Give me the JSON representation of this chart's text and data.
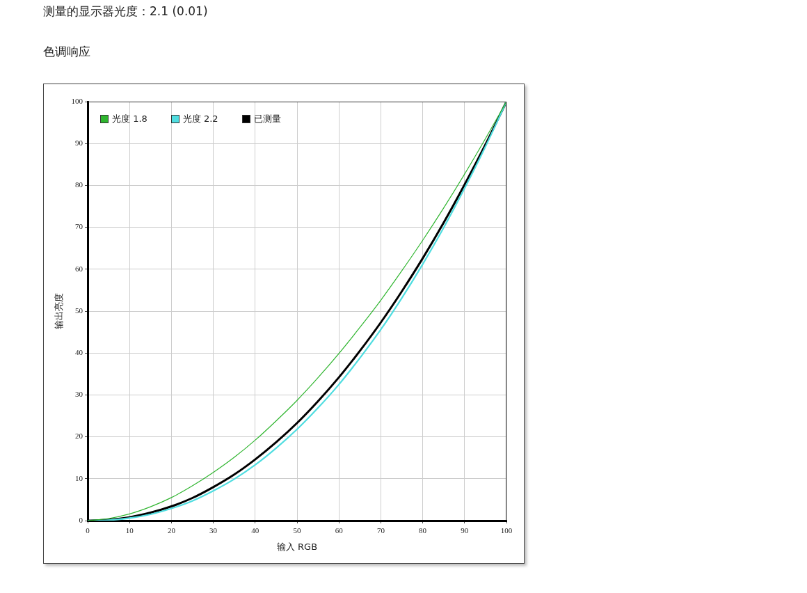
{
  "chart_data": {
    "type": "line",
    "title": "测量的显示器光度：2.1 (0.01)",
    "subtitle": "色调响应",
    "xlabel": "输入 RGB",
    "ylabel": "输出亮度",
    "x": [
      0,
      5,
      10,
      15,
      20,
      25,
      30,
      35,
      40,
      45,
      50,
      55,
      60,
      65,
      70,
      75,
      80,
      85,
      90,
      95,
      100
    ],
    "series": [
      {
        "name": "光度 1.8",
        "color": "#2fb52f",
        "values": [
          0,
          0.5,
          1.6,
          3.3,
          5.5,
          8.3,
          11.5,
          15.1,
          19.2,
          23.8,
          28.7,
          34.1,
          39.9,
          46.1,
          52.6,
          59.6,
          66.9,
          74.6,
          82.7,
          91.2,
          100
        ]
      },
      {
        "name": "光度 2.2",
        "color": "#4fdde0",
        "values": [
          0,
          0.1,
          0.6,
          1.5,
          2.9,
          4.7,
          7.1,
          9.9,
          13.3,
          17.3,
          21.8,
          26.9,
          32.5,
          38.8,
          45.6,
          53.1,
          61.2,
          69.9,
          79.3,
          89.3,
          100
        ]
      },
      {
        "name": "已测量",
        "color": "#000000",
        "values": [
          0,
          0.2,
          0.8,
          1.9,
          3.4,
          5.4,
          8.0,
          11.0,
          14.6,
          18.7,
          23.3,
          28.5,
          34.2,
          40.5,
          47.3,
          54.7,
          62.6,
          71.1,
          80.2,
          89.8,
          100
        ]
      }
    ],
    "xlim": [
      0,
      100
    ],
    "ylim": [
      0,
      100
    ],
    "xticks": [
      0,
      10,
      20,
      30,
      40,
      50,
      60,
      70,
      80,
      90,
      100
    ],
    "yticks": [
      0,
      10,
      20,
      30,
      40,
      50,
      60,
      70,
      80,
      90,
      100
    ],
    "grid": true,
    "legend": "top left",
    "line_style": "solid"
  }
}
